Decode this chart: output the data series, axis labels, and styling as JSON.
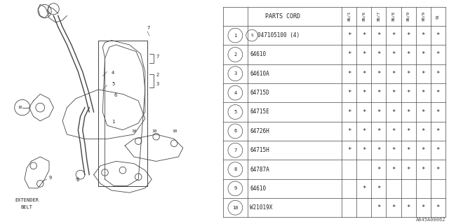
{
  "bg_color": "#ffffff",
  "parts_header": "PARTS CORD",
  "col_headers": [
    "86/3",
    "86/6",
    "86/7",
    "86/8",
    "86/9",
    "90/9",
    "91"
  ],
  "rows": [
    {
      "num": "1",
      "special": true,
      "code": "047105100 (4)",
      "marks": [
        true,
        true,
        true,
        true,
        true,
        true,
        true
      ]
    },
    {
      "num": "2",
      "special": false,
      "code": "64610",
      "marks": [
        true,
        true,
        true,
        true,
        true,
        true,
        true
      ]
    },
    {
      "num": "3",
      "special": false,
      "code": "64610A",
      "marks": [
        true,
        true,
        true,
        true,
        true,
        true,
        true
      ]
    },
    {
      "num": "4",
      "special": false,
      "code": "64715D",
      "marks": [
        true,
        true,
        true,
        true,
        true,
        true,
        true
      ]
    },
    {
      "num": "5",
      "special": false,
      "code": "64715E",
      "marks": [
        true,
        true,
        true,
        true,
        true,
        true,
        true
      ]
    },
    {
      "num": "6",
      "special": false,
      "code": "64726H",
      "marks": [
        true,
        true,
        true,
        true,
        true,
        true,
        true
      ]
    },
    {
      "num": "7",
      "special": false,
      "code": "64715H",
      "marks": [
        true,
        true,
        true,
        true,
        true,
        true,
        true
      ]
    },
    {
      "num": "8",
      "special": false,
      "code": "64787A",
      "marks": [
        false,
        false,
        true,
        true,
        true,
        true,
        true
      ]
    },
    {
      "num": "9",
      "special": false,
      "code": "64610",
      "marks": [
        false,
        true,
        true,
        false,
        false,
        false,
        false
      ]
    },
    {
      "num": "10",
      "special": false,
      "code": "W21019X",
      "marks": [
        false,
        false,
        true,
        true,
        true,
        true,
        true
      ]
    }
  ],
  "catalog_code": "A645A00062",
  "line_color": "#444444",
  "text_color": "#222222"
}
